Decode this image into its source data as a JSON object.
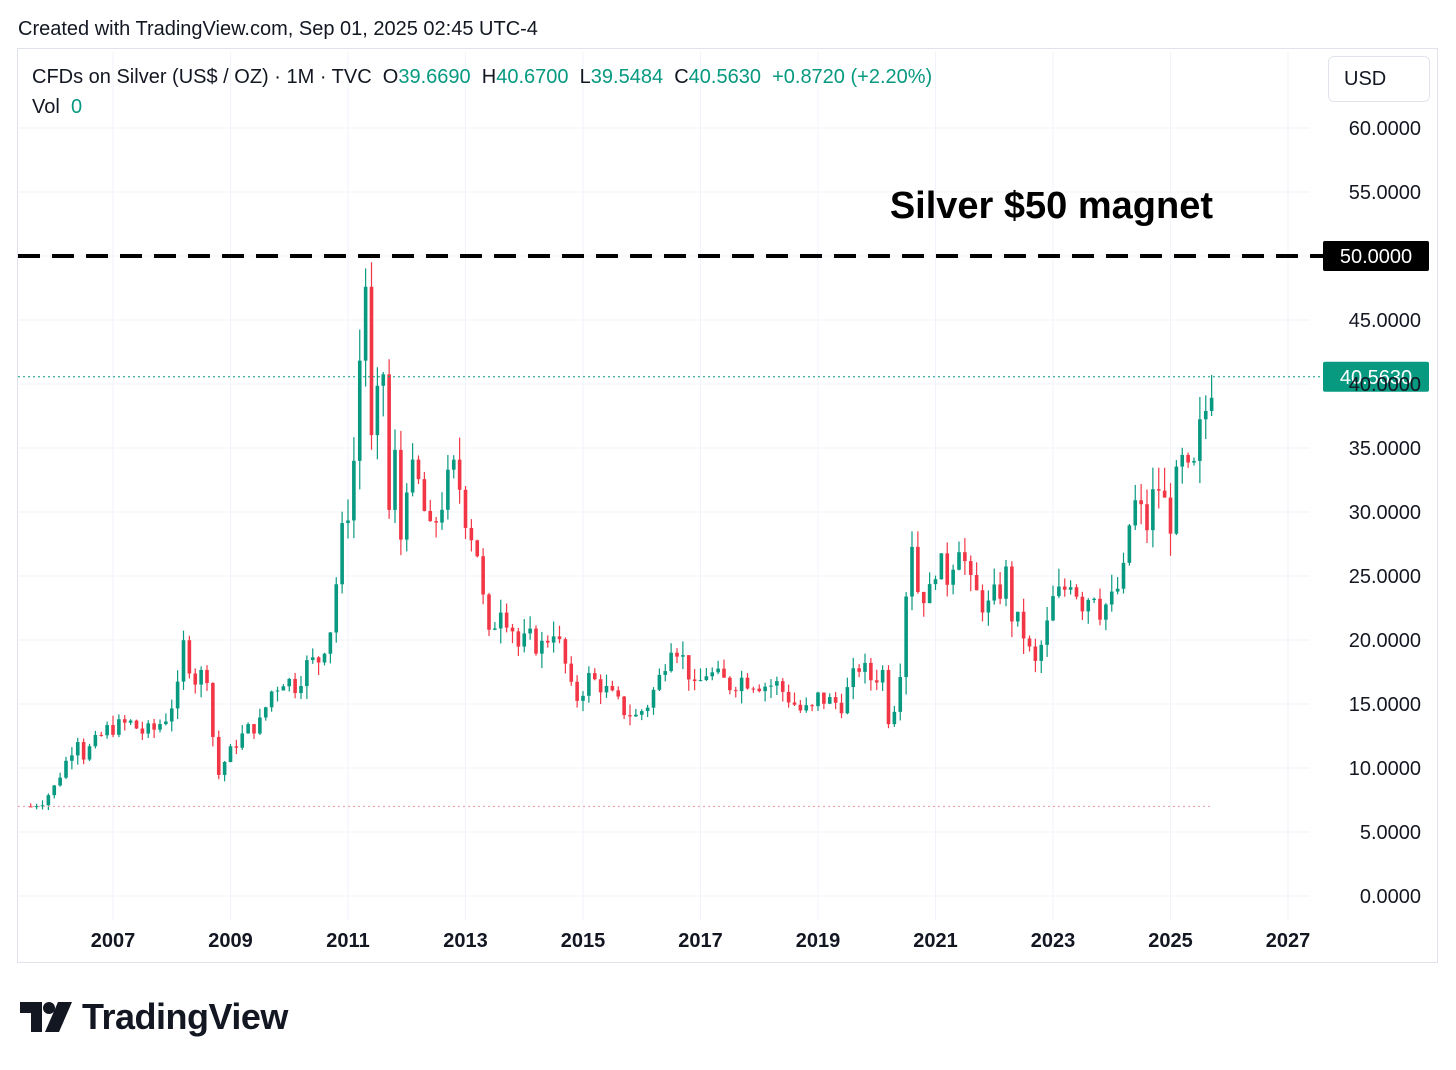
{
  "header": {
    "created_text": "Created with TradingView.com, Sep 01, 2025 02:45 UTC-4"
  },
  "legend": {
    "symbol": "CFDs on Silver (US$ / OZ) · 1M · TVC",
    "o_label": "O",
    "o_value": "39.6690",
    "h_label": "H",
    "h_value": "40.6700",
    "l_label": "L",
    "l_value": "39.5484",
    "c_label": "C",
    "c_value": "40.5630",
    "change": "+0.8720 (+2.20%)",
    "vol_label": "Vol",
    "vol_value": "0"
  },
  "currency_button": "USD",
  "footer": {
    "brand": "TradingView"
  },
  "colors": {
    "up": "#089981",
    "down": "#F23645",
    "grid": "#f0f3fa",
    "text": "#131722"
  },
  "chart_data": {
    "type": "candlestick",
    "interval": "1M",
    "annotation": "Silver $50 magnet",
    "reference_line": {
      "value": 50,
      "label": "50.0000",
      "style": "dashed"
    },
    "last_price": {
      "value": 40.563,
      "label": "40.5630"
    },
    "y_ticks": [
      "0.0000",
      "5.0000",
      "10.0000",
      "15.0000",
      "20.0000",
      "25.0000",
      "30.0000",
      "35.0000",
      "40.0000",
      "45.0000",
      "50.0000",
      "55.0000",
      "60.0000"
    ],
    "x_ticks": [
      "2007",
      "2009",
      "2011",
      "2013",
      "2015",
      "2017",
      "2019",
      "2021",
      "2023",
      "2025",
      "2027"
    ],
    "ylim": [
      0,
      60
    ],
    "xlim": [
      2005.55,
      2027.2
    ],
    "grid": true,
    "approx_monthly_close": [
      [
        2005.6,
        7.0
      ],
      [
        2005.8,
        7.4
      ],
      [
        2006.0,
        8.5
      ],
      [
        2006.2,
        10.5
      ],
      [
        2006.4,
        12.5
      ],
      [
        2006.5,
        11.0
      ],
      [
        2006.7,
        12.0
      ],
      [
        2006.9,
        13.0
      ],
      [
        2007.1,
        13.3
      ],
      [
        2007.3,
        13.5
      ],
      [
        2007.5,
        12.8
      ],
      [
        2007.7,
        13.0
      ],
      [
        2007.9,
        14.0
      ],
      [
        2008.1,
        16.0
      ],
      [
        2008.2,
        19.5
      ],
      [
        2008.4,
        17.0
      ],
      [
        2008.6,
        17.5
      ],
      [
        2008.7,
        12.5
      ],
      [
        2008.8,
        9.5
      ],
      [
        2008.9,
        10.5
      ],
      [
        2009.1,
        12.0
      ],
      [
        2009.3,
        13.0
      ],
      [
        2009.5,
        13.5
      ],
      [
        2009.7,
        16.0
      ],
      [
        2009.9,
        17.0
      ],
      [
        2010.1,
        16.5
      ],
      [
        2010.3,
        18.0
      ],
      [
        2010.5,
        18.5
      ],
      [
        2010.7,
        21.0
      ],
      [
        2010.9,
        28.0
      ],
      [
        2011.0,
        30.5
      ],
      [
        2011.1,
        34.0
      ],
      [
        2011.2,
        42.0
      ],
      [
        2011.3,
        48.0
      ],
      [
        2011.4,
        35.0
      ],
      [
        2011.5,
        38.0
      ],
      [
        2011.6,
        41.0
      ],
      [
        2011.7,
        30.0
      ],
      [
        2011.8,
        34.0
      ],
      [
        2011.9,
        28.0
      ],
      [
        2012.0,
        33.0
      ],
      [
        2012.2,
        32.0
      ],
      [
        2012.4,
        28.0
      ],
      [
        2012.6,
        31.0
      ],
      [
        2012.8,
        33.0
      ],
      [
        2012.9,
        32.0
      ],
      [
        2013.0,
        30.0
      ],
      [
        2013.2,
        27.0
      ],
      [
        2013.3,
        23.0
      ],
      [
        2013.4,
        20.0
      ],
      [
        2013.6,
        23.0
      ],
      [
        2013.8,
        21.0
      ],
      [
        2013.9,
        19.5
      ],
      [
        2014.1,
        20.0
      ],
      [
        2014.3,
        19.5
      ],
      [
        2014.5,
        21.0
      ],
      [
        2014.7,
        18.0
      ],
      [
        2014.8,
        16.0
      ],
      [
        2014.9,
        15.5
      ],
      [
        2015.1,
        17.0
      ],
      [
        2015.3,
        16.5
      ],
      [
        2015.5,
        15.5
      ],
      [
        2015.7,
        14.5
      ],
      [
        2015.9,
        14.0
      ],
      [
        2016.1,
        15.0
      ],
      [
        2016.3,
        17.0
      ],
      [
        2016.5,
        20.0
      ],
      [
        2016.6,
        19.5
      ],
      [
        2016.8,
        17.5
      ],
      [
        2016.9,
        16.0
      ],
      [
        2017.1,
        17.5
      ],
      [
        2017.3,
        17.0
      ],
      [
        2017.5,
        16.5
      ],
      [
        2017.7,
        17.0
      ],
      [
        2017.9,
        16.8
      ],
      [
        2018.1,
        16.5
      ],
      [
        2018.3,
        16.5
      ],
      [
        2018.5,
        15.5
      ],
      [
        2018.7,
        14.5
      ],
      [
        2018.9,
        14.5
      ],
      [
        2019.0,
        15.5
      ],
      [
        2019.2,
        15.2
      ],
      [
        2019.4,
        15.0
      ],
      [
        2019.6,
        17.0
      ],
      [
        2019.7,
        18.0
      ],
      [
        2019.9,
        17.0
      ],
      [
        2020.1,
        17.5
      ],
      [
        2020.2,
        14.0
      ],
      [
        2020.3,
        15.0
      ],
      [
        2020.4,
        18.0
      ],
      [
        2020.5,
        24.0
      ],
      [
        2020.6,
        28.0
      ],
      [
        2020.7,
        24.0
      ],
      [
        2020.9,
        23.5
      ],
      [
        2021.0,
        26.0
      ],
      [
        2021.2,
        25.0
      ],
      [
        2021.4,
        28.0
      ],
      [
        2021.5,
        26.0
      ],
      [
        2021.6,
        24.0
      ],
      [
        2021.8,
        23.0
      ],
      [
        2021.9,
        22.5
      ],
      [
        2022.1,
        24.0
      ],
      [
        2022.2,
        25.0
      ],
      [
        2022.3,
        22.0
      ],
      [
        2022.5,
        20.5
      ],
      [
        2022.6,
        19.0
      ],
      [
        2022.7,
        18.0
      ],
      [
        2022.9,
        21.0
      ],
      [
        2023.0,
        23.0
      ],
      [
        2023.2,
        24.0
      ],
      [
        2023.3,
        25.0
      ],
      [
        2023.5,
        23.0
      ],
      [
        2023.7,
        24.0
      ],
      [
        2023.8,
        22.5
      ],
      [
        2024.0,
        23.0
      ],
      [
        2024.2,
        25.0
      ],
      [
        2024.3,
        29.0
      ],
      [
        2024.4,
        30.5
      ],
      [
        2024.6,
        29.0
      ],
      [
        2024.7,
        31.0
      ],
      [
        2024.8,
        32.0
      ],
      [
        2024.9,
        30.5
      ],
      [
        2025.0,
        29.5
      ],
      [
        2025.1,
        32.0
      ],
      [
        2025.2,
        33.5
      ],
      [
        2025.3,
        32.5
      ],
      [
        2025.4,
        33.0
      ],
      [
        2025.5,
        36.0
      ],
      [
        2025.6,
        38.0
      ],
      [
        2025.7,
        40.563
      ]
    ]
  }
}
